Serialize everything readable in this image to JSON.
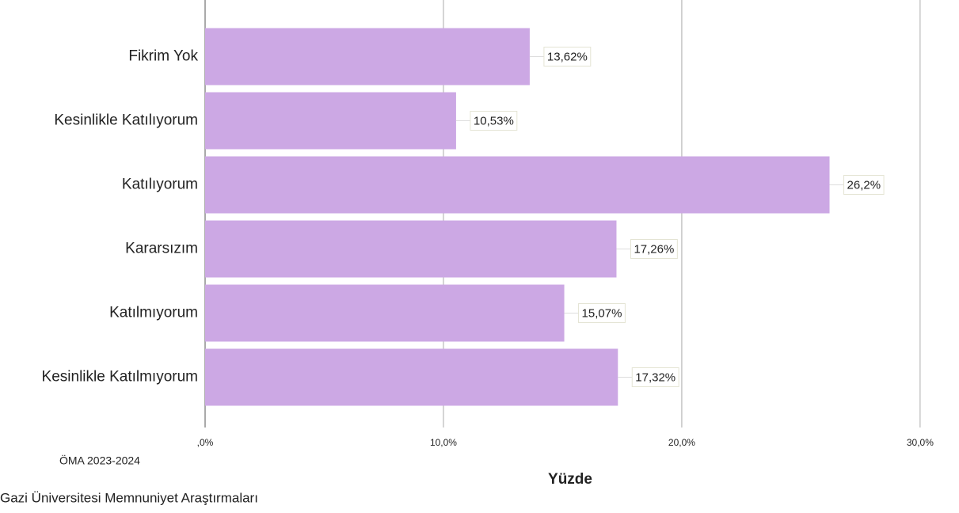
{
  "chart_data": {
    "type": "barh",
    "categories": [
      "Fikrim Yok",
      "Kesinlikle Katılıyorum",
      "Katılıyorum",
      "Kararsızım",
      "Katılmıyorum",
      "Kesinlikle Katılmıyorum"
    ],
    "values": [
      13.62,
      10.53,
      26.2,
      17.26,
      15.07,
      17.32
    ],
    "value_labels": [
      "13,62%",
      "10,53%",
      "26,2%",
      "17,26%",
      "15,07%",
      "17,32%"
    ],
    "color": "#cca8e4",
    "x_label": "Yüzde",
    "xlim": [
      0,
      31.1
    ],
    "xticks": [
      {
        "value": 0,
        "label": ",0%"
      },
      {
        "value": 10,
        "label": "10,0%"
      },
      {
        "value": 20,
        "label": "20,0%"
      },
      {
        "value": 30,
        "label": "30,0%"
      }
    ],
    "grid": true,
    "footnotes": [
      "ÖMA 2023-2024",
      "Gazi Üniversitesi Memnuniyet Araştırmaları"
    ]
  }
}
